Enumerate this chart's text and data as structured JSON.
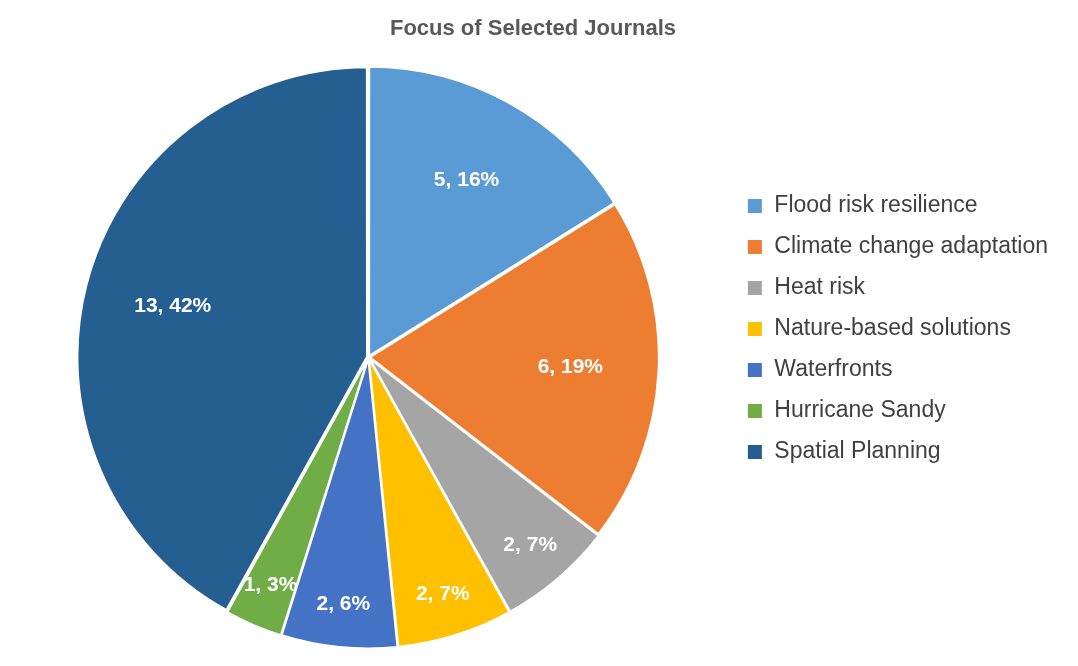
{
  "chart_data": {
    "type": "pie",
    "title": "Focus of Selected Journals",
    "categories": [
      "Flood risk resilience",
      "Climate change adaptation",
      "Heat risk",
      "Nature-based solutions",
      "Waterfronts",
      "Hurricane Sandy",
      "Spatial Planning"
    ],
    "values": [
      5,
      6,
      2,
      2,
      2,
      1,
      13
    ],
    "colors": [
      "#5b9bd5",
      "#ed7d31",
      "#a5a5a5",
      "#ffc000",
      "#4472c4",
      "#70ad47",
      "#255e91"
    ],
    "value_labels": [
      "5, 16%",
      "6, 19%",
      "2, 7%",
      "2, 7%",
      "2, 6%",
      "1, 3%",
      "13, 42%"
    ],
    "legend": "right"
  }
}
